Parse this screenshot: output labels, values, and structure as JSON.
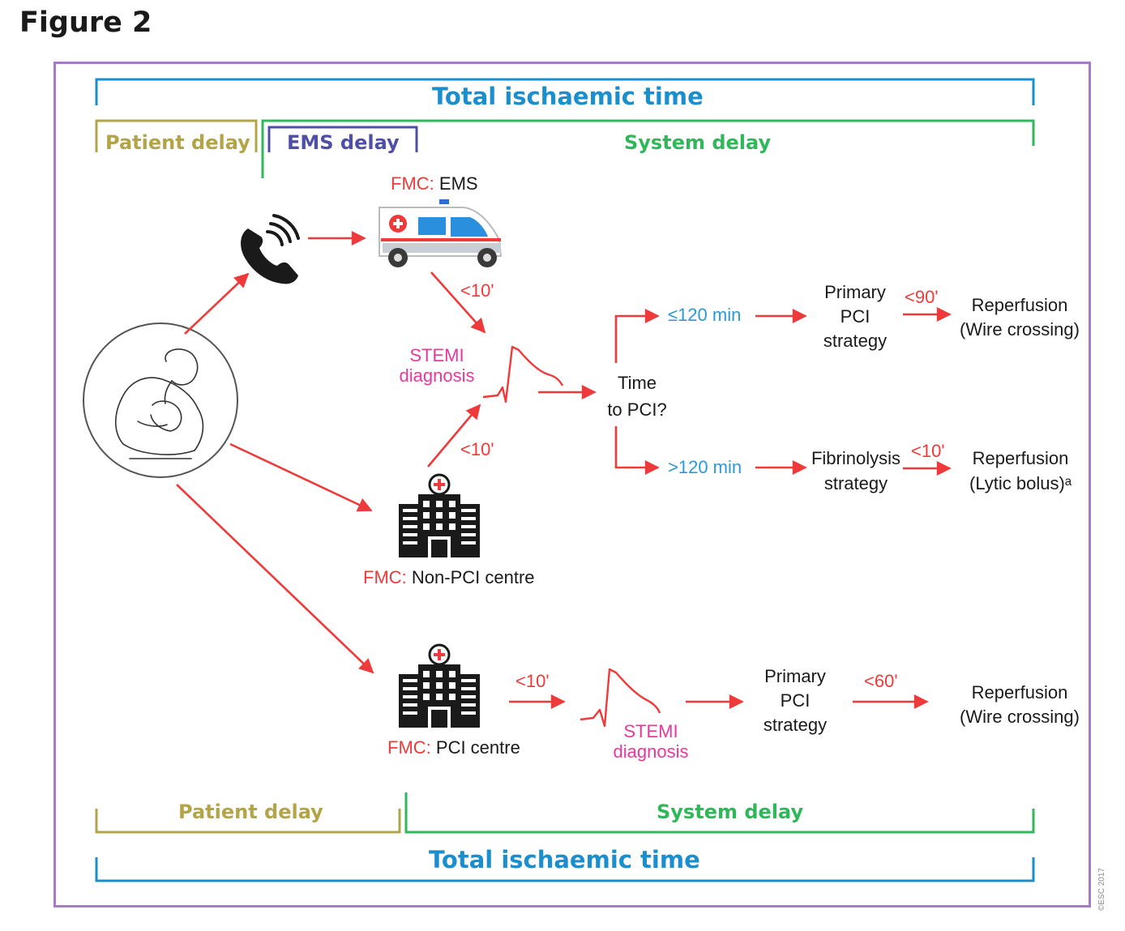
{
  "figure_title": "Figure 2",
  "top": {
    "total_ischaemic_time": "Total ischaemic time",
    "patient_delay": "Patient delay",
    "ems_delay": "EMS delay",
    "system_delay": "System delay"
  },
  "ems_path": {
    "fmc_prefix": "FMC:",
    "fmc_label": "EMS",
    "time_to_diagnosis": "<10'"
  },
  "stemi_diagnosis_1": {
    "line1": "STEMI",
    "line2": "diagnosis"
  },
  "non_pci_path": {
    "time_to_diagnosis": "<10'",
    "fmc_prefix": "FMC:",
    "fmc_label": "Non-PCI centre"
  },
  "decision": {
    "line1": "Time",
    "line2": "to PCI?"
  },
  "upper_branch": {
    "threshold": "≤120 min",
    "strategy_line1": "Primary",
    "strategy_line2": "PCI",
    "strategy_line3": "strategy",
    "time": "<90'",
    "outcome_line1": "Reperfusion",
    "outcome_line2": "(Wire crossing)"
  },
  "lower_branch": {
    "threshold": ">120 min",
    "strategy_line1": "Fibrinolysis",
    "strategy_line2": "strategy",
    "time": "<10'",
    "outcome_line1": "Reperfusion",
    "outcome_line2": "(Lytic bolus)ᵃ"
  },
  "pci_centre_path": {
    "fmc_prefix": "FMC:",
    "fmc_label": "PCI centre",
    "time_to_diagnosis": "<10'",
    "stemi_line1": "STEMI",
    "stemi_line2": "diagnosis",
    "strategy_line1": "Primary",
    "strategy_line2": "PCI",
    "strategy_line3": "strategy",
    "time": "<60'",
    "outcome_line1": "Reperfusion",
    "outcome_line2": "(Wire crossing)"
  },
  "bottom": {
    "patient_delay": "Patient delay",
    "system_delay": "System delay",
    "total_ischaemic_time": "Total ischaemic time"
  },
  "copyright": "©ESC 2017",
  "colors": {
    "frame": "#a77bc0",
    "total_time": "#1b8fce",
    "patient_delay": "#b3a448",
    "ems_delay": "#4f4fa6",
    "system_delay": "#2fb85a",
    "arrow": "#ee3a3a",
    "stemi": "#e8389c",
    "threshold": "#2a9ad6"
  }
}
